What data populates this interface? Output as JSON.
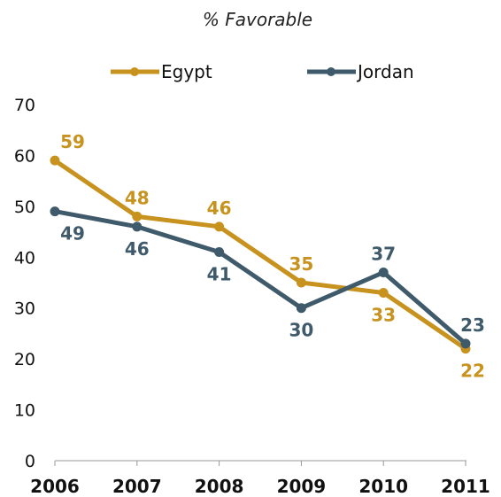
{
  "chart_data": {
    "type": "line",
    "title": "% Favorable",
    "xlabel": "",
    "ylabel": "",
    "x": [
      "2006",
      "2007",
      "2008",
      "2009",
      "2010",
      "2011"
    ],
    "ylim": [
      0,
      70
    ],
    "yticks": [
      "0",
      "10",
      "20",
      "30",
      "40",
      "50",
      "60",
      "70"
    ],
    "grid": false,
    "legend_position": "top",
    "series": [
      {
        "name": "Egypt",
        "color": "#C8921E",
        "values": [
          59,
          48,
          46,
          35,
          33,
          22
        ]
      },
      {
        "name": "Jordan",
        "color": "#3F5A6A",
        "values": [
          49,
          46,
          41,
          30,
          37,
          23
        ]
      }
    ]
  }
}
